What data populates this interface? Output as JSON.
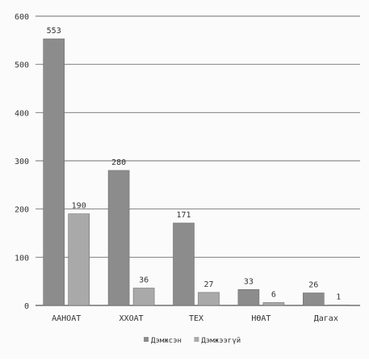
{
  "chart_data": {
    "type": "bar",
    "title": "",
    "xlabel": "",
    "ylabel": "",
    "categories": [
      "ААНОАТ",
      "ХХОАТ",
      "ТЕХ",
      "НӨАТ",
      "Дагах"
    ],
    "series": [
      {
        "name": "Дэмжсэн",
        "values": [
          553,
          280,
          171,
          33,
          26
        ],
        "color": "#8c8c8c"
      },
      {
        "name": "Дэмжээгүй",
        "values": [
          190,
          36,
          27,
          6,
          1
        ],
        "color": "#a9a9a9"
      }
    ],
    "data_labels": [
      [
        "553",
        "280",
        "171",
        "33",
        "26"
      ],
      [
        "190",
        "36",
        "27",
        "6",
        "1"
      ]
    ],
    "ylim": [
      0,
      600
    ],
    "yticks": [
      0,
      100,
      200,
      300,
      400,
      500,
      600
    ],
    "ytick_labels": [
      "0",
      "100",
      "200",
      "300",
      "400",
      "500",
      "600"
    ],
    "grid": true,
    "legend_position": "bottom"
  }
}
